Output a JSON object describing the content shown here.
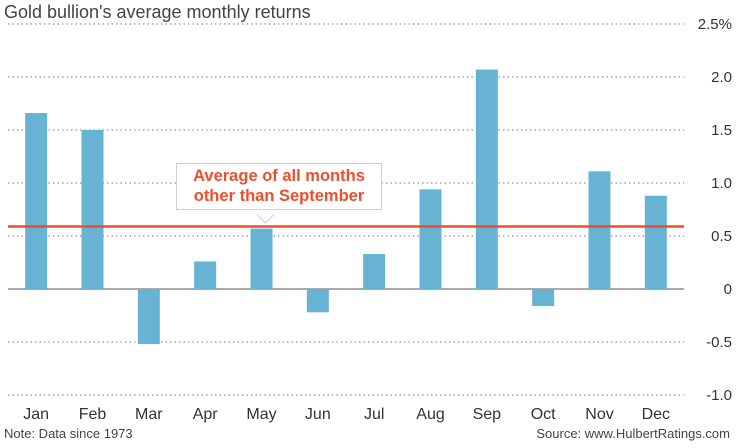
{
  "title": "Gold bullion's average monthly returns",
  "note": "Note: Data since 1973",
  "source": "Source: www.HulbertRatings.com",
  "annotation": {
    "line1": "Average of all months",
    "line2": "other than September"
  },
  "colors": {
    "bar": "#67b3d3",
    "average_line": "#ee4e2c",
    "annotation_text": "#ee4e2c",
    "grid": "#777777",
    "text": "#333333"
  },
  "chart_data": {
    "type": "bar",
    "title": "Gold bullion's average monthly returns",
    "categories": [
      "Jan",
      "Feb",
      "Mar",
      "Apr",
      "May",
      "Jun",
      "Jul",
      "Aug",
      "Sep",
      "Oct",
      "Nov",
      "Dec"
    ],
    "values": [
      1.66,
      1.5,
      -0.52,
      0.26,
      0.57,
      -0.22,
      0.33,
      0.94,
      2.07,
      -0.16,
      1.11,
      0.88
    ],
    "average_excluding_september": 0.59,
    "ylim": [
      -1.0,
      2.5
    ],
    "y_ticks": [
      2.5,
      2.0,
      1.5,
      1.0,
      0.5,
      0,
      -0.5,
      -1.0
    ],
    "y_tick_labels": [
      "2.5%",
      "2.0",
      "1.5",
      "1.0",
      "0.5",
      "0",
      "-0.5",
      "-1.0"
    ],
    "grid": true,
    "y_axis_side": "right"
  }
}
